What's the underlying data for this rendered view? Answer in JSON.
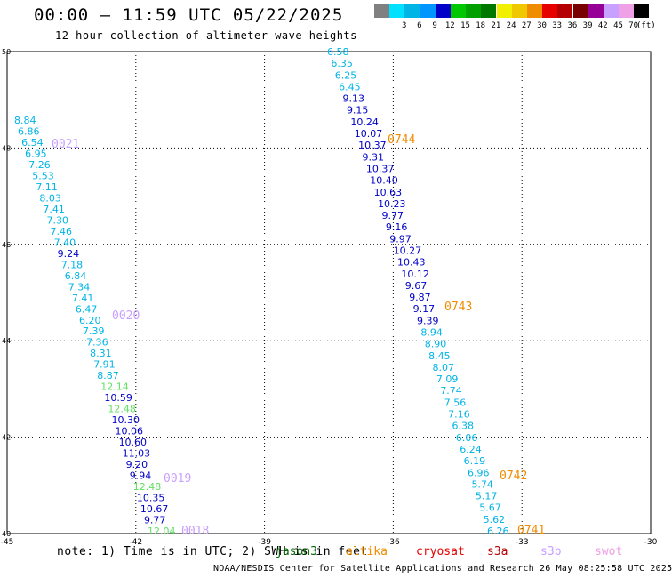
{
  "header": {
    "title": "00:00 — 11:59 UTC 05/22/2025",
    "subtitle": "12 hour collection of altimeter wave heights"
  },
  "scale": {
    "unit": "(ft)",
    "bins": [
      {
        "label": "",
        "color": "#808080"
      },
      {
        "label": "3",
        "color": "#00e0ff"
      },
      {
        "label": "6",
        "color": "#00b4e6"
      },
      {
        "label": "9",
        "color": "#0096ff"
      },
      {
        "label": "12",
        "color": "#0000c8"
      },
      {
        "label": "15",
        "color": "#00c800"
      },
      {
        "label": "18",
        "color": "#00a000"
      },
      {
        "label": "21",
        "color": "#007800"
      },
      {
        "label": "24",
        "color": "#f0f000"
      },
      {
        "label": "27",
        "color": "#f0c800"
      },
      {
        "label": "30",
        "color": "#f08c00"
      },
      {
        "label": "33",
        "color": "#e60000"
      },
      {
        "label": "36",
        "color": "#b40000"
      },
      {
        "label": "39",
        "color": "#780000"
      },
      {
        "label": "42",
        "color": "#960096"
      },
      {
        "label": "45",
        "color": "#c8a0ff"
      },
      {
        "label": "70",
        "color": "#f0a0e6"
      },
      {
        "label": "",
        "color": "#000000"
      }
    ]
  },
  "map": {
    "lon_range": [
      -45,
      -30
    ],
    "lat_range": [
      40,
      50
    ],
    "lon_ticks": [
      "-45",
      "-42",
      "-39",
      "-36",
      "-33",
      "-30"
    ],
    "lat_ticks": [
      "50",
      "48",
      "46",
      "44",
      "42",
      "40"
    ],
    "lon_tick_values": [
      -45,
      -42,
      -39,
      -36,
      -33,
      -30
    ],
    "lat_tick_values": [
      50,
      48,
      46,
      44,
      42,
      40
    ],
    "colors": {
      "cyan": "#00b4e6",
      "blue": "#0000c8",
      "green": "#60e060",
      "pass_label": "#c8a0ff",
      "time_label": "#f08c00"
    }
  },
  "tracks": {
    "west": [
      {
        "v": "8.84",
        "c": "cyan"
      },
      {
        "v": "6.86",
        "c": "cyan"
      },
      {
        "v": "6.54",
        "c": "cyan"
      },
      {
        "v": "6.95",
        "c": "cyan"
      },
      {
        "v": "7.26",
        "c": "cyan"
      },
      {
        "v": "5.53",
        "c": "cyan"
      },
      {
        "v": "7.11",
        "c": "cyan"
      },
      {
        "v": "8.03",
        "c": "cyan"
      },
      {
        "v": "7.41",
        "c": "cyan"
      },
      {
        "v": "7.30",
        "c": "cyan"
      },
      {
        "v": "7.46",
        "c": "cyan"
      },
      {
        "v": "7.40",
        "c": "cyan"
      },
      {
        "v": "9.24",
        "c": "blue"
      },
      {
        "v": "7.18",
        "c": "cyan"
      },
      {
        "v": "6.84",
        "c": "cyan"
      },
      {
        "v": "7.34",
        "c": "cyan"
      },
      {
        "v": "7.41",
        "c": "cyan"
      },
      {
        "v": "6.47",
        "c": "cyan"
      },
      {
        "v": "6.20",
        "c": "cyan"
      },
      {
        "v": "7.39",
        "c": "cyan"
      },
      {
        "v": "7.36",
        "c": "cyan"
      },
      {
        "v": "8.31",
        "c": "cyan"
      },
      {
        "v": "7.91",
        "c": "cyan"
      },
      {
        "v": "8.87",
        "c": "cyan"
      },
      {
        "v": "12.14",
        "c": "green"
      },
      {
        "v": "10.59",
        "c": "blue"
      },
      {
        "v": "12.48",
        "c": "green"
      },
      {
        "v": "10.30",
        "c": "blue"
      },
      {
        "v": "10.06",
        "c": "blue"
      },
      {
        "v": "10.60",
        "c": "blue"
      },
      {
        "v": "11.03",
        "c": "blue"
      },
      {
        "v": "9.20",
        "c": "blue"
      },
      {
        "v": "9.94",
        "c": "blue"
      },
      {
        "v": "12.48",
        "c": "green"
      },
      {
        "v": "10.35",
        "c": "blue"
      },
      {
        "v": "10.67",
        "c": "blue"
      },
      {
        "v": "9.77",
        "c": "blue"
      },
      {
        "v": "12.04",
        "c": "green"
      }
    ],
    "east": [
      {
        "v": "6.58",
        "c": "cyan"
      },
      {
        "v": "6.35",
        "c": "cyan"
      },
      {
        "v": "6.25",
        "c": "cyan"
      },
      {
        "v": "6.45",
        "c": "cyan"
      },
      {
        "v": "9.13",
        "c": "blue"
      },
      {
        "v": "9.15",
        "c": "blue"
      },
      {
        "v": "10.24",
        "c": "blue"
      },
      {
        "v": "10.07",
        "c": "blue"
      },
      {
        "v": "10.37",
        "c": "blue"
      },
      {
        "v": "9.31",
        "c": "blue"
      },
      {
        "v": "10.37",
        "c": "blue"
      },
      {
        "v": "10.40",
        "c": "blue"
      },
      {
        "v": "10.63",
        "c": "blue"
      },
      {
        "v": "10.23",
        "c": "blue"
      },
      {
        "v": "9.77",
        "c": "blue"
      },
      {
        "v": "9.16",
        "c": "blue"
      },
      {
        "v": "9.97",
        "c": "blue"
      },
      {
        "v": "10.27",
        "c": "blue"
      },
      {
        "v": "10.43",
        "c": "blue"
      },
      {
        "v": "10.12",
        "c": "blue"
      },
      {
        "v": "9.67",
        "c": "blue"
      },
      {
        "v": "9.87",
        "c": "blue"
      },
      {
        "v": "9.17",
        "c": "blue"
      },
      {
        "v": "9.39",
        "c": "blue"
      },
      {
        "v": "8.94",
        "c": "cyan"
      },
      {
        "v": "8.90",
        "c": "cyan"
      },
      {
        "v": "8.45",
        "c": "cyan"
      },
      {
        "v": "8.07",
        "c": "cyan"
      },
      {
        "v": "7.09",
        "c": "cyan"
      },
      {
        "v": "7.74",
        "c": "cyan"
      },
      {
        "v": "7.56",
        "c": "cyan"
      },
      {
        "v": "7.16",
        "c": "cyan"
      },
      {
        "v": "6.38",
        "c": "cyan"
      },
      {
        "v": "6.06",
        "c": "cyan"
      },
      {
        "v": "6.24",
        "c": "cyan"
      },
      {
        "v": "6.19",
        "c": "cyan"
      },
      {
        "v": "6.96",
        "c": "cyan"
      },
      {
        "v": "5.74",
        "c": "cyan"
      },
      {
        "v": "5.17",
        "c": "cyan"
      },
      {
        "v": "5.67",
        "c": "cyan"
      },
      {
        "v": "5.62",
        "c": "cyan"
      },
      {
        "v": "6.26",
        "c": "cyan"
      }
    ],
    "pass_labels": [
      "0021",
      "0020",
      "0019",
      "0018"
    ],
    "time_labels": [
      "0744",
      "0743",
      "0742",
      "0741"
    ]
  },
  "footer": {
    "note": "note: 1) Time is in UTC; 2) SWH is in feet",
    "satellites": [
      {
        "name": "jason3",
        "color": "#006400"
      },
      {
        "name": "altika",
        "color": "#f08c00"
      },
      {
        "name": "cryosat",
        "color": "#e60000"
      },
      {
        "name": "s3a",
        "color": "#b40000"
      },
      {
        "name": "s3b",
        "color": "#c8a0ff"
      },
      {
        "name": "swot",
        "color": "#f0a0e6"
      }
    ],
    "credit": "NOAA/NESDIS Center for Satellite Applications and Research    26 May 08:25:58 UTC 2025"
  }
}
